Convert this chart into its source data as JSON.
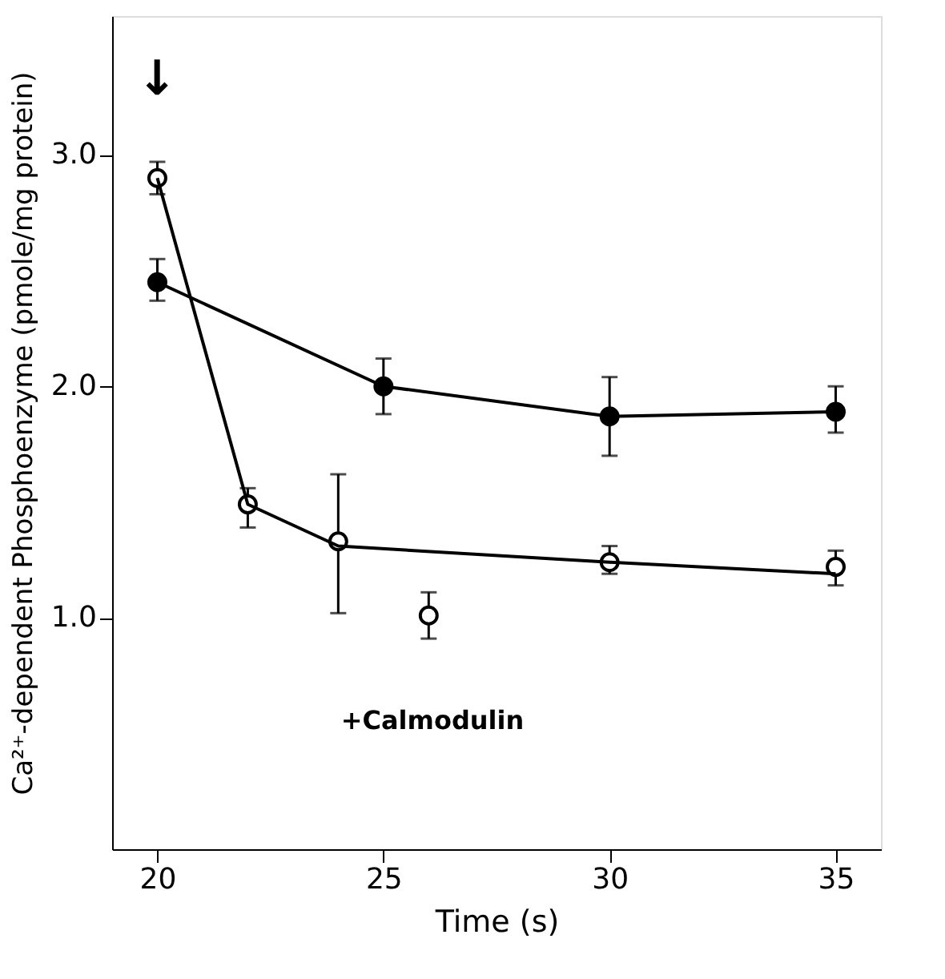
{
  "chart_data": {
    "type": "line",
    "xlabel": "Time (s)",
    "ylabel": "Ca²⁺-dependent Phosphoenzyme (pmole/mg protein)",
    "xlim": [
      19,
      36
    ],
    "ylim": [
      0,
      3.6
    ],
    "xticks": [
      20,
      25,
      30,
      35
    ],
    "yticks": [
      {
        "value": 1,
        "label": "1.0"
      },
      {
        "value": 2,
        "label": "2.0"
      },
      {
        "value": 3,
        "label": "3.0"
      }
    ],
    "grid": false,
    "marker": "circle",
    "line_style": "solid",
    "series": [
      {
        "color": "#000000",
        "x": [
          20,
          25,
          30,
          35
        ],
        "values": [
          2.45,
          2.0,
          1.87,
          1.89
        ],
        "errors": [
          [
            2.37,
            2.55
          ],
          [
            1.88,
            2.12
          ],
          [
            1.7,
            2.04
          ],
          [
            1.8,
            2.0
          ]
        ]
      },
      {
        "type": "scatter",
        "color": "#000000",
        "x": [
          20,
          22,
          24,
          26,
          30,
          35
        ],
        "values": [
          2.9,
          1.49,
          1.33,
          1.01,
          1.24,
          1.22
        ],
        "errors": [
          [
            2.83,
            2.97
          ],
          [
            1.39,
            1.56
          ],
          [
            1.02,
            1.62
          ],
          [
            0.91,
            1.11
          ],
          [
            1.19,
            1.31
          ],
          [
            1.14,
            1.29
          ]
        ]
      },
      {
        "type": "line",
        "color": "#000000",
        "marker": "none",
        "x": [
          20,
          22,
          24,
          30,
          35
        ],
        "values": [
          2.9,
          1.49,
          1.31,
          1.24,
          1.19
        ]
      }
    ],
    "annotations": [
      "+Calmodulin",
      "↓"
    ]
  }
}
